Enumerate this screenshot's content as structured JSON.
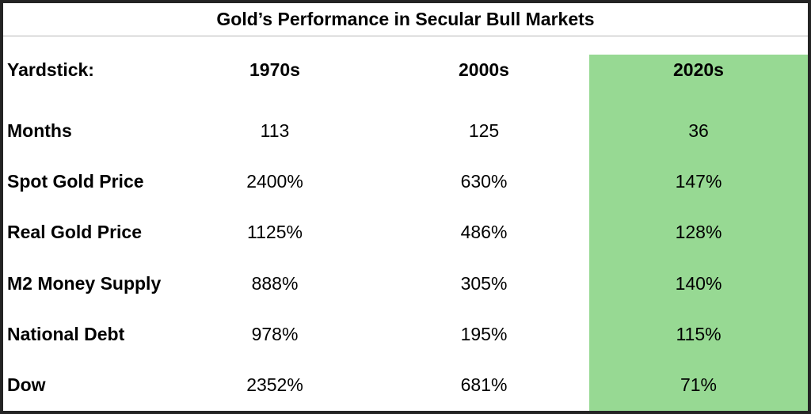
{
  "title": "Gold’s Performance in Secular Bull Markets",
  "chart_data": {
    "type": "table",
    "title": "Gold’s Performance in Secular Bull Markets",
    "columns": [
      "Yardstick:",
      "1970s",
      "2000s",
      "2020s"
    ],
    "highlight": {
      "column": "2020s",
      "color": "#97d993"
    },
    "rows": [
      {
        "label": "Months",
        "values": [
          "113",
          "125",
          "36"
        ]
      },
      {
        "label": "Spot Gold Price",
        "values": [
          "2400%",
          "630%",
          "147%"
        ]
      },
      {
        "label": "Real Gold Price",
        "values": [
          "1125%",
          "486%",
          "128%"
        ]
      },
      {
        "label": "M2 Money Supply",
        "values": [
          "888%",
          "305%",
          "140%"
        ]
      },
      {
        "label": "National Debt",
        "values": [
          "978%",
          "195%",
          "115%"
        ]
      },
      {
        "label": "Dow",
        "values": [
          "2352%",
          "681%",
          "71%"
        ]
      }
    ]
  },
  "colors": {
    "highlight_green": "#97d993",
    "outer_border": "#242424",
    "title_separator": "#b5b5b5"
  }
}
